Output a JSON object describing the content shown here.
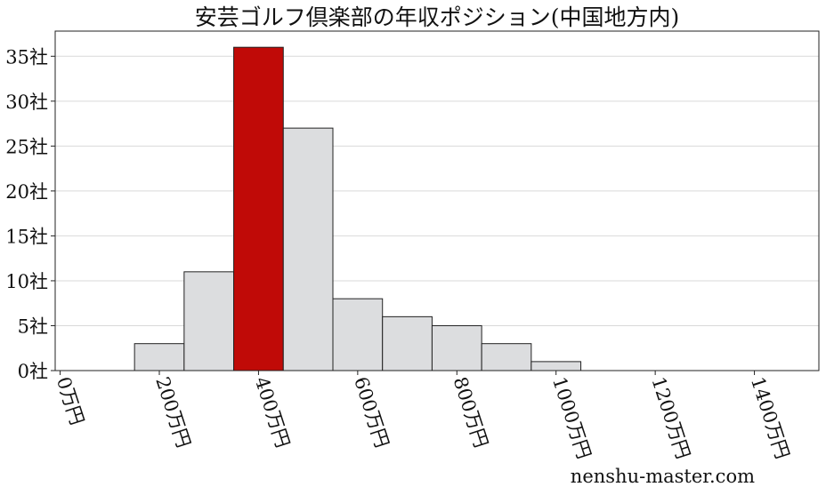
{
  "chart_data": {
    "type": "bar",
    "title": "安芸ゴルフ倶楽部の年収ポジション(中国地方内)",
    "xlabel": "",
    "ylabel": "",
    "bins": [
      {
        "start": 150,
        "end": 250,
        "count": 3
      },
      {
        "start": 250,
        "end": 350,
        "count": 11
      },
      {
        "start": 350,
        "end": 450,
        "count": 36,
        "highlight": true
      },
      {
        "start": 450,
        "end": 550,
        "count": 27
      },
      {
        "start": 550,
        "end": 650,
        "count": 8
      },
      {
        "start": 650,
        "end": 750,
        "count": 6
      },
      {
        "start": 750,
        "end": 850,
        "count": 5
      },
      {
        "start": 850,
        "end": 950,
        "count": 3
      },
      {
        "start": 950,
        "end": 1050,
        "count": 1
      }
    ],
    "xlim": [
      -10,
      1530
    ],
    "ylim": [
      0,
      37.8
    ],
    "x_ticks": [
      {
        "value": 0,
        "label": "0万円"
      },
      {
        "value": 200,
        "label": "200万円"
      },
      {
        "value": 400,
        "label": "400万円"
      },
      {
        "value": 600,
        "label": "600万円"
      },
      {
        "value": 800,
        "label": "800万円"
      },
      {
        "value": 1000,
        "label": "1000万円"
      },
      {
        "value": 1200,
        "label": "1200万円"
      },
      {
        "value": 1400,
        "label": "1400万円"
      }
    ],
    "y_ticks": [
      {
        "value": 0,
        "label": "0社"
      },
      {
        "value": 5,
        "label": "5社"
      },
      {
        "value": 10,
        "label": "10社"
      },
      {
        "value": 15,
        "label": "15社"
      },
      {
        "value": 20,
        "label": "20社"
      },
      {
        "value": 25,
        "label": "25社"
      },
      {
        "value": 30,
        "label": "30社"
      },
      {
        "value": 35,
        "label": "35社"
      }
    ],
    "grid": {
      "y": true,
      "x": false
    },
    "colors": {
      "bar": "#dcdddf",
      "highlight": "#c00a07",
      "edge": "#222222",
      "grid": "#d9d9d9"
    }
  },
  "watermark": "nenshu-master.com"
}
